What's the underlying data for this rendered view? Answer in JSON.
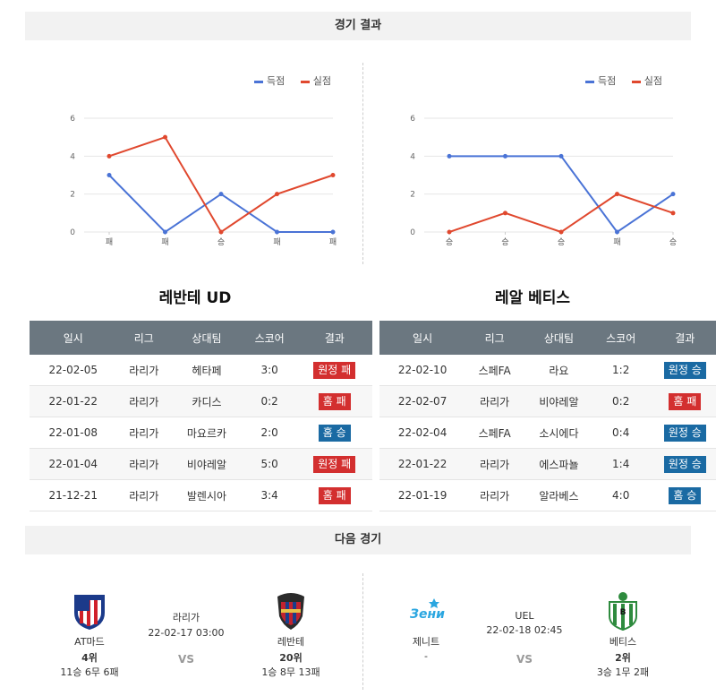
{
  "sections": {
    "results_title": "경기 결과",
    "next_title": "다음 경기"
  },
  "legend": {
    "scored": "득점",
    "conceded": "실점",
    "scored_color": "#4a73d6",
    "conceded_color": "#e0482e"
  },
  "chart_data": [
    {
      "type": "line",
      "categories": [
        "패",
        "패",
        "승",
        "패",
        "패"
      ],
      "series": [
        {
          "name": "득점",
          "values": [
            3,
            0,
            2,
            0,
            0
          ]
        },
        {
          "name": "실점",
          "values": [
            4,
            5,
            0,
            2,
            3
          ]
        }
      ],
      "ylim": [
        0,
        6
      ],
      "yticks": [
        0,
        2,
        4,
        6
      ],
      "grid": true,
      "legend": "top-right"
    },
    {
      "type": "line",
      "categories": [
        "승",
        "승",
        "승",
        "패",
        "승"
      ],
      "series": [
        {
          "name": "득점",
          "values": [
            4,
            4,
            4,
            0,
            2
          ]
        },
        {
          "name": "실점",
          "values": [
            0,
            1,
            0,
            2,
            1
          ]
        }
      ],
      "ylim": [
        0,
        6
      ],
      "yticks": [
        0,
        2,
        4,
        6
      ],
      "grid": true,
      "legend": "top-right"
    }
  ],
  "teams": {
    "left_title": "레반테 UD",
    "right_title": "레알 베티스"
  },
  "table_headers": [
    "일시",
    "리그",
    "상대팀",
    "스코어",
    "결과"
  ],
  "left_rows": [
    {
      "date": "22-02-05",
      "league": "라리가",
      "opp": "헤타페",
      "score": "3:0",
      "result": "원정 패",
      "kind": "loss"
    },
    {
      "date": "22-01-22",
      "league": "라리가",
      "opp": "카디스",
      "score": "0:2",
      "result": "홈 패",
      "kind": "loss"
    },
    {
      "date": "22-01-08",
      "league": "라리가",
      "opp": "마요르카",
      "score": "2:0",
      "result": "홈 승",
      "kind": "win"
    },
    {
      "date": "22-01-04",
      "league": "라리가",
      "opp": "비야레알",
      "score": "5:0",
      "result": "원정 패",
      "kind": "loss"
    },
    {
      "date": "21-12-21",
      "league": "라리가",
      "opp": "발렌시아",
      "score": "3:4",
      "result": "홈 패",
      "kind": "loss"
    }
  ],
  "right_rows": [
    {
      "date": "22-02-10",
      "league": "스페FA",
      "opp": "라요",
      "score": "1:2",
      "result": "원정 승",
      "kind": "win"
    },
    {
      "date": "22-02-07",
      "league": "라리가",
      "opp": "비야레알",
      "score": "0:2",
      "result": "홈 패",
      "kind": "loss"
    },
    {
      "date": "22-02-04",
      "league": "스페FA",
      "opp": "소시에다",
      "score": "0:4",
      "result": "원정 승",
      "kind": "win"
    },
    {
      "date": "22-01-22",
      "league": "라리가",
      "opp": "에스파뇰",
      "score": "1:4",
      "result": "원정 승",
      "kind": "win"
    },
    {
      "date": "22-01-19",
      "league": "라리가",
      "opp": "알라베스",
      "score": "4:0",
      "result": "홈 승",
      "kind": "win"
    }
  ],
  "next": {
    "left": {
      "home": {
        "name": "AT마드",
        "rank": "4위",
        "record": "11승 6무 6패"
      },
      "league": "라리가",
      "datetime": "22-02-17 03:00",
      "vs": "VS",
      "away": {
        "name": "레반테",
        "rank": "20위",
        "record": "1승 8무 13패"
      }
    },
    "right": {
      "home": {
        "name": "제니트",
        "rank": "-",
        "record": ""
      },
      "league": "UEL",
      "datetime": "22-02-18 02:45",
      "vs": "VS",
      "away": {
        "name": "베티스",
        "rank": "2위",
        "record": "3승 1무 2패"
      }
    }
  }
}
